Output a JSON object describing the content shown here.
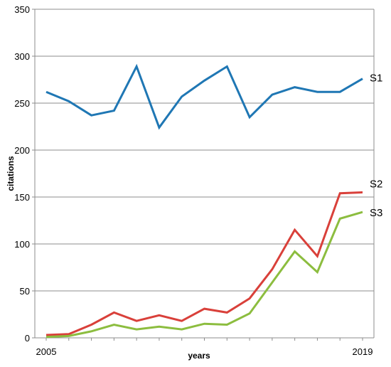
{
  "chart_data": {
    "type": "line",
    "title": "",
    "xlabel": "years",
    "ylabel": "citations",
    "x": [
      2005,
      2006,
      2007,
      2008,
      2009,
      2010,
      2011,
      2012,
      2013,
      2014,
      2015,
      2016,
      2017,
      2018,
      2019
    ],
    "x_tick_labels": [
      "2005",
      "2019"
    ],
    "y_ticks": [
      0,
      50,
      100,
      150,
      200,
      250,
      300,
      350
    ],
    "ylim": [
      0,
      350
    ],
    "grid": "horizontal",
    "legend": "inline labels at line ends",
    "series": [
      {
        "name": "S1",
        "color": "#1f77b4",
        "values": [
          262,
          252,
          237,
          242,
          289,
          224,
          257,
          274,
          289,
          235,
          259,
          267,
          262,
          262,
          276
        ]
      },
      {
        "name": "S2",
        "color": "#d9403a",
        "values": [
          3,
          4,
          14,
          27,
          18,
          24,
          18,
          31,
          27,
          42,
          73,
          115,
          87,
          154,
          155
        ]
      },
      {
        "name": "S3",
        "color": "#8cbd3f",
        "values": [
          1,
          2,
          7,
          14,
          9,
          12,
          9,
          15,
          14,
          26,
          59,
          92,
          70,
          127,
          134
        ]
      }
    ]
  }
}
